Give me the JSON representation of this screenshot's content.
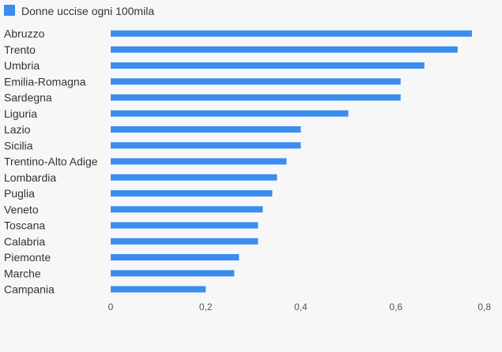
{
  "chart_data": {
    "type": "bar",
    "orientation": "horizontal",
    "title": "",
    "xlabel": "",
    "ylabel": "",
    "legend": {
      "placement": "top-left",
      "entries": [
        "Donne uccise ogni 100mila"
      ]
    },
    "grid": false,
    "categories": [
      "Abruzzo",
      "Trento",
      "Umbria",
      "Emilia-Romagna",
      "Sardegna",
      "Liguria",
      "Lazio",
      "Sicilia",
      "Trentino-Alto Adige",
      "Lombardia",
      "Puglia",
      "Veneto",
      "Toscana",
      "Calabria",
      "Piemonte",
      "Marche",
      "Campania"
    ],
    "series": [
      {
        "name": "Donne uccise ogni 100mila",
        "color": "#3b8ded",
        "values": [
          0.76,
          0.73,
          0.66,
          0.61,
          0.61,
          0.5,
          0.4,
          0.4,
          0.37,
          0.35,
          0.34,
          0.32,
          0.31,
          0.31,
          0.27,
          0.26,
          0.2
        ]
      }
    ],
    "xlim": [
      0,
      0.8
    ],
    "xticks": [
      {
        "value": 0,
        "label": "0"
      },
      {
        "value": 0.2,
        "label": "0,2"
      },
      {
        "value": 0.4,
        "label": "0,4"
      },
      {
        "value": 0.6,
        "label": "0,6"
      },
      {
        "value": 0.8,
        "label": "0,8"
      }
    ]
  }
}
